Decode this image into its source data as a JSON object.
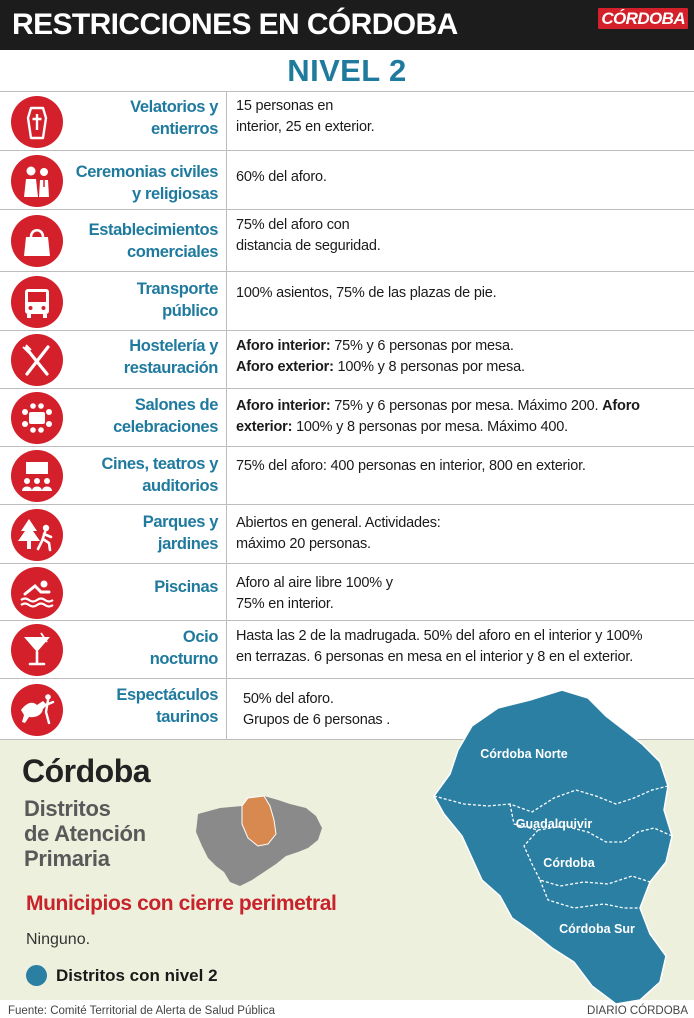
{
  "header": {
    "title": "RESTRICCIONES EN CÓRDOBA",
    "logo_text": "CÓRDOBA"
  },
  "level_title": "NIVEL 2",
  "colors": {
    "header_bg": "#1c1c1c",
    "accent_red": "#d3202a",
    "label_blue": "#1f7a9e",
    "map_blue": "#2a7fa3",
    "panel_bg": "#eef0de",
    "closure_red": "#c8232b"
  },
  "restrictions": [
    {
      "icon": "coffin-icon",
      "label_lines": [
        "Velatorios y",
        "entierros"
      ],
      "desc_lines": [
        [
          {
            "t": "15 personas en"
          }
        ],
        [
          {
            "t": "interior, 25 en exterior."
          }
        ]
      ]
    },
    {
      "icon": "wedding-couple-icon",
      "label_lines": [
        "Ceremonias civiles",
        "y religiosas"
      ],
      "desc_lines": [
        [
          {
            "t": "60% del aforo."
          }
        ]
      ]
    },
    {
      "icon": "shopping-bag-icon",
      "label_lines": [
        "Establecimientos",
        "comerciales"
      ],
      "desc_lines": [
        [
          {
            "t": "75% del aforo con"
          }
        ],
        [
          {
            "t": "distancia de seguridad."
          }
        ]
      ]
    },
    {
      "icon": "bus-icon",
      "label_lines": [
        "Transporte",
        "público"
      ],
      "desc_lines": [
        [
          {
            "t": "100% asientos, 75% de las plazas de pie."
          }
        ]
      ]
    },
    {
      "icon": "fork-knife-icon",
      "label_lines": [
        "Hostelería y",
        "restauración"
      ],
      "desc_lines": [
        [
          {
            "t": "Aforo interior:",
            "b": true
          },
          {
            "t": " 75% y 6 personas por mesa."
          }
        ],
        [
          {
            "t": "Aforo exterior:",
            "b": true
          },
          {
            "t": " 100% y 8 personas por mesa."
          }
        ]
      ]
    },
    {
      "icon": "banquet-table-icon",
      "label_lines": [
        "Salones de",
        "celebraciones"
      ],
      "desc_lines": [
        [
          {
            "t": "Aforo interior:",
            "b": true
          },
          {
            "t": " 75% y 6 personas por mesa. Máximo 200. "
          },
          {
            "t": "Aforo",
            "b": true
          }
        ],
        [
          {
            "t": "exterior:",
            "b": true
          },
          {
            "t": " 100% y 8 personas por mesa. Máximo 400."
          }
        ]
      ]
    },
    {
      "icon": "cinema-audience-icon",
      "label_lines": [
        "Cines, teatros y",
        "auditorios"
      ],
      "desc_lines": [
        [
          {
            "t": "75% del aforo: 400 personas en interior, 800 en exterior."
          }
        ]
      ]
    },
    {
      "icon": "park-walker-icon",
      "label_lines": [
        "Parques y",
        "jardines"
      ],
      "desc_lines": [
        [
          {
            "t": "Abiertos en general. Actividades:"
          }
        ],
        [
          {
            "t": "máximo 20 personas."
          }
        ]
      ]
    },
    {
      "icon": "swimmer-icon",
      "label_lines": [
        "Piscinas"
      ],
      "desc_lines": [
        [
          {
            "t": "Aforo al aire libre 100% y"
          }
        ],
        [
          {
            "t": "75% en interior."
          }
        ]
      ]
    },
    {
      "icon": "cocktail-glass-icon",
      "label_lines": [
        "Ocio",
        "nocturno"
      ],
      "desc_lines": [
        [
          {
            "t": "Hasta las 2 de la madrugada. 50% del aforo en el interior y 100%"
          }
        ],
        [
          {
            "t": "en terrazas. 6 personas en mesa en el interior y 8 en el exterior."
          }
        ]
      ]
    },
    {
      "icon": "bullfighter-icon",
      "label_lines": [
        "Espectáculos",
        "taurinos"
      ],
      "desc_lines": [
        [
          {
            "t": "50% del aforo."
          }
        ],
        [
          {
            "t": "Grupos de 6 personas ."
          }
        ]
      ]
    }
  ],
  "bottom": {
    "place_name": "Córdoba",
    "subtitle_lines": [
      "Distritos",
      "de Atención",
      "Primaria"
    ],
    "closure_title": "Municipios con cierre perimetral",
    "closure_value": "Ninguno.",
    "legend_label": "Distritos con nivel 2",
    "andalucia_icon": "andalucia-locator-map",
    "map": {
      "districts": [
        "Córdoba Norte",
        "Guadalquivir",
        "Córdoba",
        "Córdoba Sur"
      ],
      "level_2_districts": [
        "Córdoba Norte",
        "Guadalquivir",
        "Córdoba",
        "Córdoba Sur"
      ]
    }
  },
  "footer": {
    "source": "Fuente: Comité Territorial de Alerta de Salud Pública",
    "credit": "DIARIO CÓRDOBA"
  }
}
